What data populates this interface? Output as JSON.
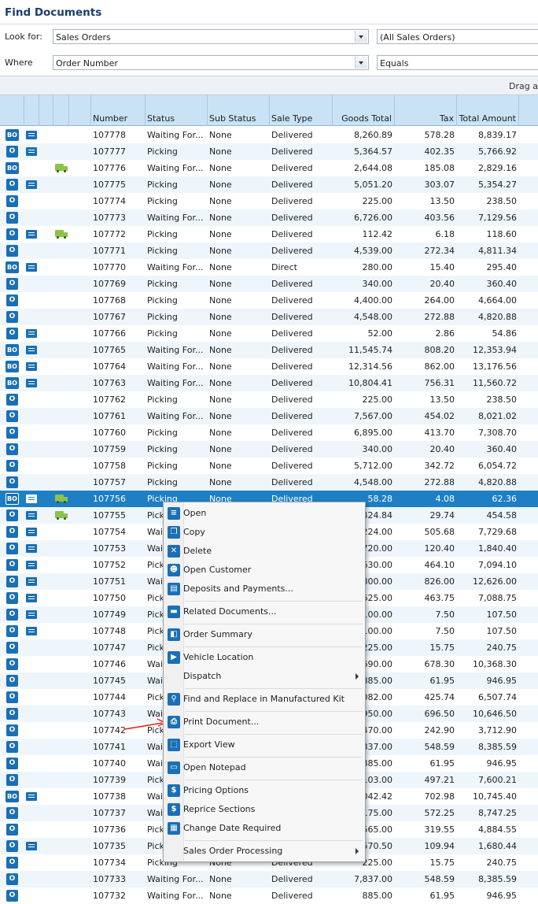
{
  "title": "Find Documents",
  "criteria": {
    "look_for_label": "Look for:",
    "look_for_value": "Sales Orders",
    "look_for_filter": "(All Sales Orders)",
    "where_label": "Where",
    "where_value": "Order Number",
    "where_op": "Equals"
  },
  "drag_hint": "Drag a",
  "columns": [
    "Number",
    "Status",
    "Sub Status",
    "Sale Type",
    "Goods Total",
    "Tax",
    "Total Amount"
  ],
  "rows": [
    {
      "type": "BO",
      "doc": true,
      "truck": false,
      "number": "107778",
      "status": "Waiting For...",
      "sub": "None",
      "sale": "Delivered",
      "goods": "8,260.89",
      "tax": "578.28",
      "total": "8,839.17"
    },
    {
      "type": "O",
      "doc": true,
      "truck": false,
      "number": "107777",
      "status": "Picking",
      "sub": "None",
      "sale": "Delivered",
      "goods": "5,364.57",
      "tax": "402.35",
      "total": "5,766.92"
    },
    {
      "type": "BO",
      "doc": false,
      "truck": true,
      "number": "107776",
      "status": "Waiting For...",
      "sub": "None",
      "sale": "Delivered",
      "goods": "2,644.08",
      "tax": "185.08",
      "total": "2,829.16"
    },
    {
      "type": "O",
      "doc": true,
      "truck": false,
      "number": "107775",
      "status": "Picking",
      "sub": "None",
      "sale": "Delivered",
      "goods": "5,051.20",
      "tax": "303.07",
      "total": "5,354.27"
    },
    {
      "type": "O",
      "doc": false,
      "truck": false,
      "number": "107774",
      "status": "Picking",
      "sub": "None",
      "sale": "Delivered",
      "goods": "225.00",
      "tax": "13.50",
      "total": "238.50"
    },
    {
      "type": "O",
      "doc": false,
      "truck": false,
      "number": "107773",
      "status": "Waiting For...",
      "sub": "None",
      "sale": "Delivered",
      "goods": "6,726.00",
      "tax": "403.56",
      "total": "7,129.56"
    },
    {
      "type": "O",
      "doc": true,
      "truck": true,
      "number": "107772",
      "status": "Picking",
      "sub": "None",
      "sale": "Delivered",
      "goods": "112.42",
      "tax": "6.18",
      "total": "118.60"
    },
    {
      "type": "O",
      "doc": false,
      "truck": false,
      "number": "107771",
      "status": "Picking",
      "sub": "None",
      "sale": "Delivered",
      "goods": "4,539.00",
      "tax": "272.34",
      "total": "4,811.34"
    },
    {
      "type": "BO",
      "doc": true,
      "truck": false,
      "number": "107770",
      "status": "Waiting For...",
      "sub": "None",
      "sale": "Direct",
      "goods": "280.00",
      "tax": "15.40",
      "total": "295.40"
    },
    {
      "type": "O",
      "doc": false,
      "truck": false,
      "number": "107769",
      "status": "Picking",
      "sub": "None",
      "sale": "Delivered",
      "goods": "340.00",
      "tax": "20.40",
      "total": "360.40"
    },
    {
      "type": "O",
      "doc": false,
      "truck": false,
      "number": "107768",
      "status": "Picking",
      "sub": "None",
      "sale": "Delivered",
      "goods": "4,400.00",
      "tax": "264.00",
      "total": "4,664.00"
    },
    {
      "type": "O",
      "doc": false,
      "truck": false,
      "number": "107767",
      "status": "Picking",
      "sub": "None",
      "sale": "Delivered",
      "goods": "4,548.00",
      "tax": "272.88",
      "total": "4,820.88"
    },
    {
      "type": "O",
      "doc": true,
      "truck": false,
      "number": "107766",
      "status": "Picking",
      "sub": "None",
      "sale": "Delivered",
      "goods": "52.00",
      "tax": "2.86",
      "total": "54.86"
    },
    {
      "type": "BO",
      "doc": true,
      "truck": false,
      "number": "107765",
      "status": "Waiting For...",
      "sub": "None",
      "sale": "Delivered",
      "goods": "11,545.74",
      "tax": "808.20",
      "total": "12,353.94"
    },
    {
      "type": "BO",
      "doc": true,
      "truck": false,
      "number": "107764",
      "status": "Waiting For...",
      "sub": "None",
      "sale": "Delivered",
      "goods": "12,314.56",
      "tax": "862.00",
      "total": "13,176.56"
    },
    {
      "type": "BO",
      "doc": true,
      "truck": false,
      "number": "107763",
      "status": "Waiting For...",
      "sub": "None",
      "sale": "Delivered",
      "goods": "10,804.41",
      "tax": "756.31",
      "total": "11,560.72"
    },
    {
      "type": "O",
      "doc": false,
      "truck": false,
      "number": "107762",
      "status": "Picking",
      "sub": "None",
      "sale": "Delivered",
      "goods": "225.00",
      "tax": "13.50",
      "total": "238.50"
    },
    {
      "type": "O",
      "doc": false,
      "truck": false,
      "number": "107761",
      "status": "Waiting For...",
      "sub": "None",
      "sale": "Delivered",
      "goods": "7,567.00",
      "tax": "454.02",
      "total": "8,021.02"
    },
    {
      "type": "O",
      "doc": false,
      "truck": false,
      "number": "107760",
      "status": "Picking",
      "sub": "None",
      "sale": "Delivered",
      "goods": "6,895.00",
      "tax": "413.70",
      "total": "7,308.70"
    },
    {
      "type": "O",
      "doc": false,
      "truck": false,
      "number": "107759",
      "status": "Picking",
      "sub": "None",
      "sale": "Delivered",
      "goods": "340.00",
      "tax": "20.40",
      "total": "360.40"
    },
    {
      "type": "O",
      "doc": false,
      "truck": false,
      "number": "107758",
      "status": "Picking",
      "sub": "None",
      "sale": "Delivered",
      "goods": "5,712.00",
      "tax": "342.72",
      "total": "6,054.72"
    },
    {
      "type": "O",
      "doc": false,
      "truck": false,
      "number": "107757",
      "status": "Picking",
      "sub": "None",
      "sale": "Delivered",
      "goods": "4,548.00",
      "tax": "272.88",
      "total": "4,820.88"
    },
    {
      "type": "BO",
      "doc": true,
      "truck": true,
      "number": "107756",
      "status": "Picking",
      "sub": "None",
      "sale": "Delivered",
      "goods": "58.28",
      "tax": "4.08",
      "total": "62.36"
    },
    {
      "type": "O",
      "doc": true,
      "truck": true,
      "number": "107755",
      "status": "Pick",
      "sub": "",
      "sale": "",
      "goods": "424.84",
      "tax": "29.74",
      "total": "454.58"
    },
    {
      "type": "O",
      "doc": true,
      "truck": false,
      "number": "107754",
      "status": "Wait",
      "sub": "",
      "sale": "",
      "goods": "224.00",
      "tax": "505.68",
      "total": "7,729.68"
    },
    {
      "type": "O",
      "doc": true,
      "truck": false,
      "number": "107753",
      "status": "Wait",
      "sub": "",
      "sale": "",
      "goods": "720.00",
      "tax": "120.40",
      "total": "1,840.40"
    },
    {
      "type": "O",
      "doc": true,
      "truck": false,
      "number": "107752",
      "status": "Pick",
      "sub": "",
      "sale": "",
      "goods": "630.00",
      "tax": "464.10",
      "total": "7,094.10"
    },
    {
      "type": "O",
      "doc": true,
      "truck": false,
      "number": "107751",
      "status": "Wait",
      "sub": "",
      "sale": "",
      "goods": "800.00",
      "tax": "826.00",
      "total": "12,626.00"
    },
    {
      "type": "O",
      "doc": true,
      "truck": false,
      "number": "107750",
      "status": "Pick",
      "sub": "",
      "sale": "",
      "goods": "625.00",
      "tax": "463.75",
      "total": "7,088.75"
    },
    {
      "type": "O",
      "doc": true,
      "truck": false,
      "number": "107749",
      "status": "Pick",
      "sub": "",
      "sale": "",
      "goods": "100.00",
      "tax": "7.50",
      "total": "107.50"
    },
    {
      "type": "O",
      "doc": true,
      "truck": false,
      "number": "107748",
      "status": "Pick",
      "sub": "",
      "sale": "",
      "goods": "100.00",
      "tax": "7.50",
      "total": "107.50"
    },
    {
      "type": "O",
      "doc": false,
      "truck": false,
      "number": "107747",
      "status": "Pick",
      "sub": "",
      "sale": "",
      "goods": "225.00",
      "tax": "15.75",
      "total": "240.75"
    },
    {
      "type": "O",
      "doc": false,
      "truck": false,
      "number": "107746",
      "status": "Wait",
      "sub": "",
      "sale": "",
      "goods": "690.00",
      "tax": "678.30",
      "total": "10,368.30"
    },
    {
      "type": "O",
      "doc": false,
      "truck": false,
      "number": "107745",
      "status": "Wait",
      "sub": "",
      "sale": "",
      "goods": "885.00",
      "tax": "61.95",
      "total": "946.95"
    },
    {
      "type": "O",
      "doc": false,
      "truck": false,
      "number": "107744",
      "status": "Pick",
      "sub": "",
      "sale": "",
      "goods": "082.00",
      "tax": "425.74",
      "total": "6,507.74"
    },
    {
      "type": "O",
      "doc": false,
      "truck": false,
      "number": "107743",
      "status": "Wai",
      "sub": "",
      "sale": "",
      "goods": "950.00",
      "tax": "696.50",
      "total": "10,646.50"
    },
    {
      "type": "O",
      "doc": false,
      "truck": false,
      "number": "107742",
      "status": "Pick",
      "sub": "",
      "sale": "",
      "goods": "470.00",
      "tax": "242.90",
      "total": "3,712.90"
    },
    {
      "type": "O",
      "doc": false,
      "truck": false,
      "number": "107741",
      "status": "Wait",
      "sub": "",
      "sale": "",
      "goods": "837.00",
      "tax": "548.59",
      "total": "8,385.59"
    },
    {
      "type": "O",
      "doc": false,
      "truck": false,
      "number": "107740",
      "status": "Wait",
      "sub": "",
      "sale": "",
      "goods": "885.00",
      "tax": "61.95",
      "total": "946.95"
    },
    {
      "type": "O",
      "doc": false,
      "truck": false,
      "number": "107739",
      "status": "Pick",
      "sub": "",
      "sale": "",
      "goods": "103.00",
      "tax": "497.21",
      "total": "7,600.21"
    },
    {
      "type": "BO",
      "doc": true,
      "truck": false,
      "number": "107738",
      "status": "Wait",
      "sub": "",
      "sale": "",
      "goods": "042.42",
      "tax": "702.98",
      "total": "10,745.40"
    },
    {
      "type": "O",
      "doc": false,
      "truck": false,
      "number": "107737",
      "status": "Wait",
      "sub": "",
      "sale": "",
      "goods": "175.00",
      "tax": "572.25",
      "total": "8,747.25"
    },
    {
      "type": "O",
      "doc": false,
      "truck": false,
      "number": "107736",
      "status": "Pick",
      "sub": "",
      "sale": "",
      "goods": "565.00",
      "tax": "319.55",
      "total": "4,884.55"
    },
    {
      "type": "O",
      "doc": true,
      "truck": false,
      "number": "107735",
      "status": "Pick",
      "sub": "",
      "sale": "",
      "goods": "570.50",
      "tax": "109.94",
      "total": "1,680.44"
    },
    {
      "type": "O",
      "doc": false,
      "truck": false,
      "number": "107734",
      "status": "Picking",
      "sub": "None",
      "sale": "Delivered",
      "goods": "225.00",
      "tax": "15.75",
      "total": "240.75"
    },
    {
      "type": "O",
      "doc": false,
      "truck": false,
      "number": "107733",
      "status": "Waiting For...",
      "sub": "None",
      "sale": "Delivered",
      "goods": "7,837.00",
      "tax": "548.59",
      "total": "8,385.59"
    },
    {
      "type": "O",
      "doc": false,
      "truck": false,
      "number": "107732",
      "status": "Waiting For...",
      "sub": "None",
      "sale": "Delivered",
      "goods": "885.00",
      "tax": "61.95",
      "total": "946.95"
    }
  ],
  "context_menu": [
    {
      "label": "Open",
      "icon": "list-icon",
      "glyph": "≡",
      "sep": false
    },
    {
      "label": "Copy",
      "icon": "copy-icon",
      "glyph": "❐",
      "sep": false
    },
    {
      "label": "Delete",
      "icon": "delete-icon",
      "glyph": "✕",
      "sep": false
    },
    {
      "label": "Open Customer",
      "icon": "customer-icon",
      "glyph": "☻",
      "sep": false
    },
    {
      "label": "Deposits and Payments...",
      "icon": "payments-icon",
      "glyph": "▤",
      "sep": true
    },
    {
      "label": "Related Documents...",
      "icon": "document-icon",
      "glyph": "▬",
      "sep": true
    },
    {
      "label": "Order Summary",
      "icon": "summary-icon",
      "glyph": "◧",
      "sep": true
    },
    {
      "label": "Vehicle Location",
      "icon": "truck-icon",
      "glyph": "▶",
      "sep": false
    },
    {
      "label": "Dispatch",
      "icon": "",
      "glyph": "",
      "sep": true,
      "submenu": true
    },
    {
      "label": "Find and Replace in Manufactured Kit",
      "icon": "search-icon",
      "glyph": "⚲",
      "sep": true
    },
    {
      "label": "Print Document...",
      "icon": "print-icon",
      "glyph": "⎙",
      "sep": true
    },
    {
      "label": "Export View",
      "icon": "export-icon",
      "glyph": "⬚",
      "sep": true
    },
    {
      "label": "Open Notepad",
      "icon": "notepad-icon",
      "glyph": "▭",
      "sep": true
    },
    {
      "label": "Pricing Options",
      "icon": "dollar-icon",
      "glyph": "$",
      "sep": false
    },
    {
      "label": "Reprice Sections",
      "icon": "dollar-icon",
      "glyph": "$",
      "sep": false
    },
    {
      "label": "Change Date Required",
      "icon": "calendar-icon",
      "glyph": "▦",
      "sep": true
    },
    {
      "label": "Sales Order Processing",
      "icon": "",
      "glyph": "",
      "sep": false,
      "submenu": true
    }
  ]
}
